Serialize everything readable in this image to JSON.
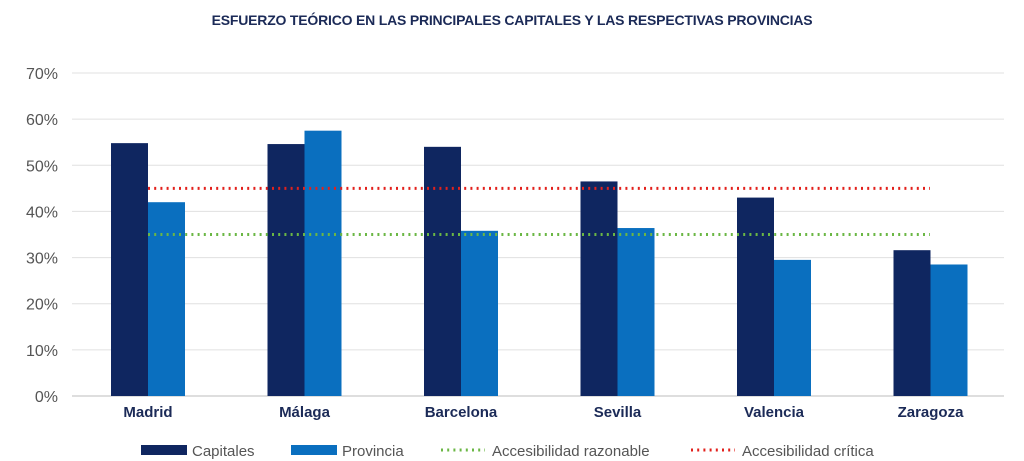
{
  "chart_data": {
    "type": "bar",
    "title": "ESFUERZO TEÓRICO EN LAS PRINCIPALES CAPITALES Y LAS RESPECTIVAS PROVINCIAS",
    "categories": [
      "Madrid",
      "Málaga",
      "Barcelona",
      "Sevilla",
      "Valencia",
      "Zaragoza"
    ],
    "series": [
      {
        "name": "Capitales",
        "color": "#0f2660",
        "values": [
          54.8,
          54.6,
          54.0,
          46.5,
          43.0,
          31.6
        ]
      },
      {
        "name": "Provincia",
        "color": "#0a6fbf",
        "values": [
          42.0,
          57.5,
          35.8,
          36.4,
          29.5,
          28.5
        ]
      }
    ],
    "reference_lines": [
      {
        "name": "Accesibilidad razonable",
        "value": 35,
        "color": "#6bb745"
      },
      {
        "name": "Accesibilidad crítica",
        "value": 45,
        "color": "#e2211c"
      }
    ],
    "y_ticks": [
      "0%",
      "10%",
      "20%",
      "30%",
      "40%",
      "50%",
      "60%",
      "70%"
    ],
    "ylim": [
      0,
      70
    ],
    "xlabel": "",
    "ylabel": "",
    "grid": true,
    "legend_position": "bottom"
  }
}
